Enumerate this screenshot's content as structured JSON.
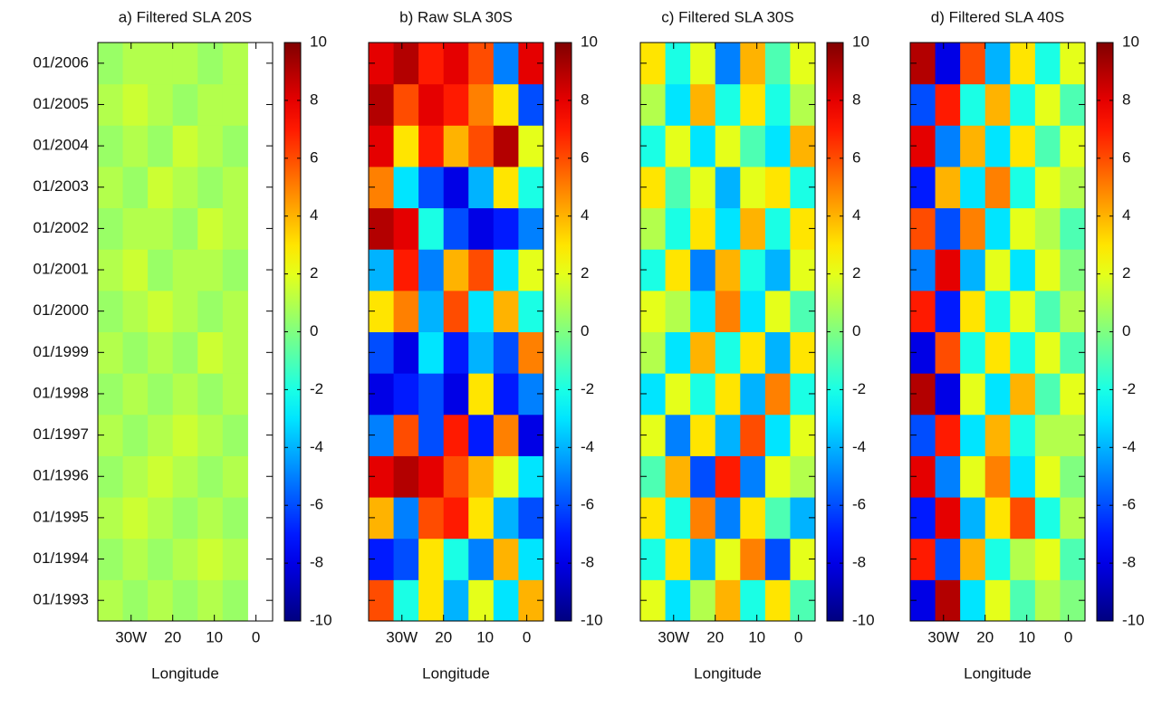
{
  "chart_data": [
    {
      "type": "heatmap",
      "title": "a) Filtered SLA 20S",
      "xlabel": "Longitude",
      "xlim": [
        -38,
        4
      ],
      "xticks": [
        {
          "value": -30,
          "label": "30W"
        },
        {
          "value": -20,
          "label": "20"
        },
        {
          "value": -10,
          "label": "10"
        },
        0
      ],
      "ylim": [
        1992.5,
        2006.5
      ],
      "ytick_labels": true,
      "yticks": [
        {
          "value": 1993,
          "label": "01/1993"
        },
        {
          "value": 1994,
          "label": "01/1994"
        },
        {
          "value": 1995,
          "label": "01/1995"
        },
        {
          "value": 1996,
          "label": "01/1996"
        },
        {
          "value": 1997,
          "label": "01/1997"
        },
        {
          "value": 1998,
          "label": "01/1998"
        },
        {
          "value": 1999,
          "label": "01/1999"
        },
        {
          "value": 2000,
          "label": "01/2000"
        },
        {
          "value": 2001,
          "label": "01/2001"
        },
        {
          "value": 2002,
          "label": "01/2002"
        },
        {
          "value": 2003,
          "label": "01/2003"
        },
        {
          "value": 2004,
          "label": "01/2004"
        },
        {
          "value": 2005,
          "label": "01/2005"
        },
        {
          "value": 2006,
          "label": "01/2006"
        }
      ],
      "x": [
        -35,
        -29,
        -23,
        -17,
        -11,
        -5
      ],
      "y": [
        1993,
        1994,
        1995,
        1996,
        1997,
        1998,
        1999,
        2000,
        2001,
        2002,
        2003,
        2004,
        2005,
        2006
      ],
      "values": [
        [
          1,
          0.5,
          1,
          0.5,
          1,
          0.5
        ],
        [
          0.5,
          1,
          0.5,
          1,
          1.5,
          1
        ],
        [
          1,
          1.5,
          1,
          0.5,
          1,
          0.5
        ],
        [
          0.5,
          1,
          1.5,
          1,
          0.5,
          1
        ],
        [
          1,
          0.5,
          1,
          1.5,
          1,
          0.5
        ],
        [
          0.5,
          1,
          0.5,
          1,
          0.5,
          1
        ],
        [
          1,
          0.5,
          1,
          0.5,
          1.5,
          1
        ],
        [
          0.5,
          1,
          1.5,
          1,
          0.5,
          1
        ],
        [
          1,
          1.5,
          0.5,
          1,
          1,
          0.5
        ],
        [
          0.5,
          1,
          1,
          0.5,
          1.5,
          1
        ],
        [
          1,
          0.5,
          1.5,
          1,
          0.5,
          1
        ],
        [
          0.5,
          1,
          0.5,
          1.5,
          1,
          0.5
        ],
        [
          1,
          1.5,
          1,
          0.5,
          1,
          1
        ],
        [
          0.5,
          1,
          1,
          1,
          0.5,
          1
        ]
      ],
      "clim": [
        -10,
        10
      ],
      "cticks": [
        -10,
        -8,
        -6,
        -4,
        -2,
        0,
        2,
        4,
        6,
        8,
        10
      ],
      "colormap": "jet"
    },
    {
      "type": "heatmap",
      "title": "b) Raw SLA 30S",
      "xlabel": "Longitude",
      "xlim": [
        -38,
        4
      ],
      "xticks": [
        {
          "value": -30,
          "label": "30W"
        },
        {
          "value": -20,
          "label": "20"
        },
        {
          "value": -10,
          "label": "10"
        },
        0
      ],
      "ylim": [
        1992.5,
        2006.5
      ],
      "ytick_labels": false,
      "yticks": [
        1993,
        1994,
        1995,
        1996,
        1997,
        1998,
        1999,
        2000,
        2001,
        2002,
        2003,
        2004,
        2005,
        2006
      ],
      "x": [
        -35,
        -29,
        -23,
        -17,
        -11,
        -5,
        1
      ],
      "y": [
        1993,
        1994,
        1995,
        1996,
        1997,
        1998,
        1999,
        2000,
        2001,
        2002,
        2003,
        2004,
        2005,
        2006
      ],
      "values": [
        [
          6,
          -2,
          3,
          -4,
          2,
          -3,
          4
        ],
        [
          -7,
          -6,
          3,
          -2,
          -5,
          4,
          -3
        ],
        [
          4,
          -5,
          6,
          7,
          3,
          -4,
          -6
        ],
        [
          8,
          9,
          8,
          6,
          4,
          2,
          -3
        ],
        [
          -5,
          6,
          -6,
          7,
          -7,
          5,
          -8
        ],
        [
          -8,
          -7,
          -6,
          -8,
          3,
          -7,
          -5
        ],
        [
          -6,
          -8,
          -3,
          -7,
          -4,
          -6,
          5
        ],
        [
          3,
          5,
          -4,
          6,
          -3,
          4,
          -2
        ],
        [
          -4,
          7,
          -5,
          4,
          6,
          -3,
          2
        ],
        [
          9,
          8,
          -2,
          -6,
          -8,
          -7,
          -5
        ],
        [
          5,
          -3,
          -6,
          -8,
          -4,
          3,
          -2
        ],
        [
          8,
          3,
          7,
          4,
          6,
          9,
          2
        ],
        [
          9,
          6,
          8,
          7,
          5,
          3,
          -6
        ],
        [
          8,
          9,
          7,
          8,
          6,
          -5,
          8
        ]
      ],
      "clim": [
        -10,
        10
      ],
      "cticks": [
        -10,
        -8,
        -6,
        -4,
        -2,
        0,
        2,
        4,
        6,
        8,
        10
      ],
      "colormap": "jet"
    },
    {
      "type": "heatmap",
      "title": "c) Filtered SLA 30S",
      "xlabel": "Longitude",
      "xlim": [
        -38,
        4
      ],
      "xticks": [
        {
          "value": -30,
          "label": "30W"
        },
        {
          "value": -20,
          "label": "20"
        },
        {
          "value": -10,
          "label": "10"
        },
        0
      ],
      "ylim": [
        1992.5,
        2006.5
      ],
      "ytick_labels": false,
      "yticks": [
        1993,
        1994,
        1995,
        1996,
        1997,
        1998,
        1999,
        2000,
        2001,
        2002,
        2003,
        2004,
        2005,
        2006
      ],
      "x": [
        -35,
        -29,
        -23,
        -17,
        -11,
        -5,
        1
      ],
      "y": [
        1993,
        1994,
        1995,
        1996,
        1997,
        1998,
        1999,
        2000,
        2001,
        2002,
        2003,
        2004,
        2005,
        2006
      ],
      "values": [
        [
          2,
          -3,
          1,
          4,
          -2,
          3,
          -1
        ],
        [
          -2,
          3,
          -4,
          2,
          5,
          -6,
          2
        ],
        [
          3,
          -2,
          5,
          -5,
          3,
          -1,
          -4
        ],
        [
          -1,
          4,
          -6,
          7,
          -5,
          2,
          1
        ],
        [
          2,
          -5,
          3,
          -4,
          6,
          -3,
          2
        ],
        [
          -3,
          2,
          -2,
          3,
          -4,
          5,
          -2
        ],
        [
          1,
          -3,
          4,
          -2,
          3,
          -4,
          3
        ],
        [
          2,
          1,
          -3,
          5,
          -3,
          2,
          -1
        ],
        [
          -2,
          3,
          -5,
          4,
          -2,
          -4,
          2
        ],
        [
          1,
          -2,
          3,
          -3,
          4,
          -2,
          3
        ],
        [
          3,
          -1,
          2,
          -4,
          2,
          3,
          -2
        ],
        [
          -2,
          2,
          -3,
          2,
          -1,
          -3,
          4
        ],
        [
          1,
          -3,
          4,
          -2,
          3,
          -2,
          1
        ],
        [
          3,
          -2,
          2,
          -5,
          4,
          -1,
          2
        ]
      ],
      "clim": [
        -10,
        10
      ],
      "cticks": [
        -10,
        -8,
        -6,
        -4,
        -2,
        0,
        2,
        4,
        6,
        8,
        10
      ],
      "colormap": "jet"
    },
    {
      "type": "heatmap",
      "title": "d) Filtered SLA 40S",
      "xlabel": "Longitude",
      "xlim": [
        -38,
        4
      ],
      "xticks": [
        {
          "value": -30,
          "label": "30W"
        },
        {
          "value": -20,
          "label": "20"
        },
        {
          "value": -10,
          "label": "10"
        },
        0
      ],
      "ylim": [
        1992.5,
        2006.5
      ],
      "ytick_labels": false,
      "yticks": [
        1993,
        1994,
        1995,
        1996,
        1997,
        1998,
        1999,
        2000,
        2001,
        2002,
        2003,
        2004,
        2005,
        2006
      ],
      "x": [
        -35,
        -29,
        -23,
        -17,
        -11,
        -5,
        1
      ],
      "y": [
        1993,
        1994,
        1995,
        1996,
        1997,
        1998,
        1999,
        2000,
        2001,
        2002,
        2003,
        2004,
        2005,
        2006
      ],
      "values": [
        [
          -8,
          9,
          -3,
          2,
          -1,
          1,
          0
        ],
        [
          7,
          -6,
          4,
          -2,
          1,
          2,
          -1
        ],
        [
          -7,
          8,
          -4,
          3,
          6,
          -2,
          1
        ],
        [
          8,
          -5,
          2,
          5,
          -3,
          2,
          0
        ],
        [
          -6,
          7,
          -3,
          4,
          -2,
          1,
          1
        ],
        [
          9,
          -8,
          2,
          -3,
          4,
          -1,
          2
        ],
        [
          -8,
          6,
          -2,
          3,
          -2,
          2,
          -1
        ],
        [
          7,
          -7,
          3,
          -2,
          2,
          -1,
          1
        ],
        [
          -5,
          8,
          -4,
          2,
          -3,
          2,
          0
        ],
        [
          6,
          -6,
          5,
          -3,
          2,
          1,
          -1
        ],
        [
          -7,
          4,
          -3,
          5,
          -2,
          2,
          1
        ],
        [
          8,
          -5,
          4,
          -3,
          3,
          -1,
          2
        ],
        [
          -6,
          7,
          -2,
          4,
          -2,
          2,
          -1
        ],
        [
          9,
          -8,
          6,
          -4,
          3,
          -2,
          2
        ]
      ],
      "clim": [
        -10,
        10
      ],
      "cticks": [
        -10,
        -8,
        -6,
        -4,
        -2,
        0,
        2,
        4,
        6,
        8,
        10
      ],
      "colormap": "jet"
    }
  ]
}
